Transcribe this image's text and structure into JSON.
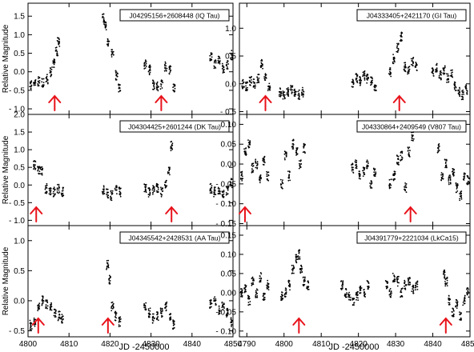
{
  "figure": {
    "left_xlabel": "JD -2450000",
    "right_xlabel": "JD -2450000",
    "ylabel": "Relative Magnitude"
  },
  "colors": {
    "arrow": "#e8131b",
    "points": "#000000",
    "frame": "#000000"
  },
  "chart_data": [
    {
      "type": "scatter",
      "title": "J04295156+2608448 (IQ Tau)",
      "xlabel": "",
      "ylabel": "Relative Magnitude",
      "xlim": [
        4800,
        4850
      ],
      "ylim": [
        1.85,
        -1.15
      ],
      "y_inverted": true,
      "yticks": [
        1.5,
        1.0,
        0.5,
        0.0,
        -0.5,
        -1.0
      ],
      "ytick_labels": [
        "1.5",
        "1.0",
        "0.5",
        "0.0",
        "- 0.5",
        "- 1.0"
      ],
      "xticks": [
        4800,
        4810,
        4820,
        4830,
        4840,
        4850
      ],
      "xtick_labels": [],
      "arrows_x": [
        4806.5,
        4832.5
      ],
      "series": [
        {
          "x": [
            4800.7,
            4801.6,
            4802.6,
            4803.6,
            4804.6,
            4805.6,
            4806.3,
            4807.0,
            4807.4
          ],
          "y": [
            -0.35,
            -0.3,
            -0.25,
            -0.3,
            -0.2,
            0.0,
            0.25,
            0.55,
            0.8
          ]
        },
        {
          "x": [
            4818.4,
            4818.8,
            4819.6,
            4820.6,
            4821.6,
            4822.3
          ],
          "y": [
            1.45,
            1.25,
            0.8,
            0.5,
            -0.1,
            -0.45
          ]
        },
        {
          "x": [
            4828.6,
            4829.6,
            4830.6,
            4831.6,
            4832.6,
            4833.6,
            4834.6,
            4835.6
          ],
          "y": [
            0.2,
            0.05,
            -0.35,
            -0.4,
            -0.35,
            0.15,
            0.05,
            -0.45
          ]
        },
        {
          "x": [
            4844.6,
            4845.6,
            4846.6,
            4847.6,
            4848.6,
            4849.6
          ],
          "y": [
            0.4,
            0.2,
            0.3,
            0.1,
            0.2,
            0.45
          ]
        }
      ]
    },
    {
      "type": "scatter",
      "title": "J04333405+2421170 (GI Tau)",
      "xlabel": "",
      "ylabel": "",
      "xlim": [
        4788,
        4850
      ],
      "ylim": [
        1.45,
        -0.55
      ],
      "y_inverted": true,
      "yticks": [
        1.0,
        0.5,
        0.0,
        -0.5
      ],
      "ytick_labels": [
        "1.0",
        "0.5",
        "0.0",
        "- 0.5"
      ],
      "xticks": [
        4790,
        4800,
        4810,
        4820,
        4830,
        4840,
        4850
      ],
      "xtick_labels": [],
      "arrows_x": [
        4795,
        4831
      ],
      "series": [
        {
          "x": [
            4789,
            4790,
            4791,
            4792,
            4793,
            4794,
            4795,
            4796
          ],
          "y": [
            0.0,
            -0.05,
            0.05,
            0.0,
            0.1,
            0.35,
            0.15,
            -0.05
          ]
        },
        {
          "x": [
            4799,
            4800,
            4801,
            4802,
            4803,
            4804,
            4805
          ],
          "y": [
            -0.15,
            -0.2,
            -0.15,
            -0.1,
            -0.15,
            -0.2,
            -0.15
          ]
        },
        {
          "x": [
            4818.5,
            4819.5,
            4820.5,
            4821.5,
            4822.5,
            4823.5,
            4824.5
          ],
          "y": [
            0.0,
            0.1,
            0.05,
            0.15,
            0.1,
            0.05,
            -0.1
          ]
        },
        {
          "x": [
            4828.5,
            4829.5,
            4830.5,
            4831.5,
            4832.5,
            4833.5,
            4834.5,
            4835.5
          ],
          "y": [
            0.2,
            0.45,
            0.65,
            0.85,
            0.3,
            0.25,
            0.4,
            0.3
          ]
        },
        {
          "x": [
            4840,
            4841,
            4842,
            4843,
            4844,
            4845,
            4846,
            4847,
            4848,
            4849
          ],
          "y": [
            0.2,
            0.3,
            0.15,
            0.25,
            0.1,
            0.2,
            -0.05,
            -0.15,
            -0.2,
            -0.1
          ]
        }
      ]
    },
    {
      "type": "scatter",
      "title": "J04304425+2601244 (DK Tau)",
      "xlabel": "",
      "ylabel": "Relative Magnitude",
      "xlim": [
        4800,
        4850
      ],
      "ylim": [
        2.0,
        -1.15
      ],
      "y_inverted": true,
      "yticks": [
        2.0,
        1.5,
        1.0,
        0.5,
        0.0,
        -0.5,
        -1.0
      ],
      "ytick_labels": [
        "2.0",
        "1.5",
        "1.0",
        "0.5",
        "0.0",
        "- 0.5",
        "- 1.0"
      ],
      "xticks": [
        4800,
        4810,
        4820,
        4830,
        4840,
        4850
      ],
      "xtick_labels": [],
      "arrows_x": [
        4802,
        4835
      ],
      "series": [
        {
          "x": [
            4801.6,
            4802.6,
            4803.3,
            4804.4,
            4805.4,
            4806.4,
            4807.4,
            4808.4
          ],
          "y": [
            0.55,
            0.45,
            0.4,
            -0.1,
            -0.15,
            -0.2,
            -0.1,
            -0.2
          ]
        },
        {
          "x": [
            4818.4,
            4819.4,
            4820.4,
            4821.4,
            4822.4
          ],
          "y": [
            -0.15,
            -0.25,
            -0.3,
            -0.15,
            -0.2
          ]
        },
        {
          "x": [
            4828.6,
            4829.6,
            4830.6,
            4831.6,
            4832.6,
            4833.6,
            4834.3,
            4835.0
          ],
          "y": [
            -0.1,
            -0.2,
            -0.15,
            -0.1,
            -0.2,
            0.0,
            0.4,
            1.1
          ]
        },
        {
          "x": [
            4844.6,
            4845.6,
            4846.6,
            4847.6,
            4848.6,
            4849.6
          ],
          "y": [
            -0.1,
            -0.2,
            -0.15,
            -0.25,
            -0.15,
            0.05
          ]
        }
      ]
    },
    {
      "type": "scatter",
      "title": "J04330864+2409549 (V807 Tau)",
      "xlabel": "",
      "ylabel": "",
      "xlim": [
        4788,
        4850
      ],
      "ylim": [
        0.125,
        -0.155
      ],
      "y_inverted": true,
      "yticks": [
        0.1,
        0.05,
        0.0,
        -0.05,
        -0.1,
        -0.15
      ],
      "ytick_labels": [
        "0.10",
        "0.05",
        "0.00",
        "- 0.05",
        "- 0.10",
        "- 0.15"
      ],
      "xticks": [
        4790,
        4800,
        4810,
        4820,
        4830,
        4840,
        4850
      ],
      "xtick_labels": [],
      "arrows_x": [
        4789.5,
        4834
      ],
      "series": [
        {
          "x": [
            4788.6,
            4789.6,
            4790.6,
            4791.6,
            4792.6,
            4793.6,
            4794.6,
            4795.6
          ],
          "y": [
            -0.03,
            0.03,
            0.05,
            -0.01,
            0.0,
            -0.04,
            0.01,
            -0.03
          ]
        },
        {
          "x": [
            4799.4,
            4800.4,
            4801.4,
            4802.4,
            4803.4,
            4804.4,
            4805.4
          ],
          "y": [
            -0.05,
            0.02,
            -0.03,
            0.05,
            0.03,
            0.0,
            0.04
          ]
        },
        {
          "x": [
            4818.4,
            4819.4,
            4820.4,
            4821.4,
            4822.4,
            4823.4,
            4824.4
          ],
          "y": [
            -0.01,
            0.0,
            -0.03,
            -0.02,
            0.0,
            -0.05,
            -0.02
          ]
        },
        {
          "x": [
            4828.6,
            4829.6,
            4830.6,
            4831.6,
            4832.6,
            4833.6,
            4834.6
          ],
          "y": [
            -0.05,
            -0.03,
            0.01,
            0.02,
            -0.06,
            0.03,
            0.07
          ]
        },
        {
          "x": [
            4841.5,
            4842.5,
            4843.5,
            4844.5,
            4845.5,
            4846.5,
            4847.5,
            4848.5,
            4849.5
          ],
          "y": [
            0.04,
            -0.03,
            0.0,
            -0.04,
            -0.02,
            -0.06,
            -0.08,
            -0.03,
            -0.04
          ]
        }
      ]
    },
    {
      "type": "scatter",
      "title": "J04345542+2428531 (AA Tau)",
      "xlabel": "JD -2450000",
      "ylabel": "Relative Magnitude",
      "xlim": [
        4800,
        4850
      ],
      "ylim": [
        1.25,
        -0.6
      ],
      "y_inverted": true,
      "yticks": [
        1.0,
        0.5,
        0.0,
        -0.5
      ],
      "ytick_labels": [
        "1.0",
        "0.5",
        "0.0",
        "- 0.5"
      ],
      "xticks": [
        4800,
        4810,
        4820,
        4830,
        4840,
        4850
      ],
      "xtick_labels": [
        "4800",
        "4810",
        "4820",
        "4830",
        "4840",
        "4850"
      ],
      "arrows_x": [
        4802.5,
        4819.5
      ],
      "series": [
        {
          "x": [
            4800.7,
            4801.6,
            4802.6,
            4803.6,
            4804.6,
            4805.6,
            4806.6,
            4807.6,
            4808.4
          ],
          "y": [
            -0.4,
            -0.35,
            -0.1,
            0.0,
            -0.05,
            -0.1,
            -0.2,
            -0.25,
            -0.3
          ]
        },
        {
          "x": [
            4819.4,
            4820.0,
            4820.6,
            4821.4,
            4822.4
          ],
          "y": [
            0.6,
            0.35,
            -0.1,
            -0.25,
            -0.35
          ]
        },
        {
          "x": [
            4828.6,
            4829.6,
            4830.6,
            4831.6,
            4832.6,
            4833.6,
            4834.6,
            4835.6
          ],
          "y": [
            -0.1,
            -0.2,
            -0.3,
            -0.25,
            -0.2,
            -0.1,
            -0.25,
            -0.4
          ]
        },
        {
          "x": [
            4844.6,
            4845.6,
            4846.6,
            4847.6,
            4848.6,
            4849.6
          ],
          "y": [
            -0.05,
            0.0,
            -0.15,
            -0.1,
            -0.2,
            -0.35
          ]
        }
      ]
    },
    {
      "type": "scatter",
      "title": "J04391779+2221034 (LkCa15)",
      "xlabel": "JD -2450000",
      "ylabel": "",
      "xlim": [
        4788,
        4850
      ],
      "ylim": [
        0.175,
        -0.115
      ],
      "y_inverted": true,
      "yticks": [
        0.15,
        0.1,
        0.05,
        0.0,
        -0.05,
        -0.1
      ],
      "ytick_labels": [
        "0.15",
        "0.10",
        "0.05",
        "0.00",
        "- 0.05",
        "- 0.10"
      ],
      "xticks": [
        4790,
        4800,
        4810,
        4820,
        4830,
        4840,
        4850
      ],
      "xtick_labels": [
        "4790",
        "4800",
        "4810",
        "4820",
        "4830",
        "4840",
        "4850"
      ],
      "arrows_x": [
        4804,
        4843.5
      ],
      "series": [
        {
          "x": [
            4788.6,
            4789.6,
            4790.6,
            4791.6,
            4792.6,
            4793.6,
            4794.6,
            4795.6
          ],
          "y": [
            0.0,
            0.01,
            -0.02,
            0.03,
            0.0,
            0.04,
            -0.01,
            0.02
          ]
        },
        {
          "x": [
            4799.4,
            4800.4,
            4801.4,
            4802.4,
            4803.4,
            4804.0,
            4804.6,
            4805.4,
            4806.4
          ],
          "y": [
            -0.01,
            0.0,
            0.02,
            0.06,
            0.09,
            0.1,
            0.06,
            0.03,
            0.02
          ]
        },
        {
          "x": [
            4815.6,
            4816.6,
            4817.6,
            4818.6,
            4819.6,
            4820.6,
            4821.6,
            4822.6
          ],
          "y": [
            0.02,
            0.0,
            -0.01,
            -0.02,
            -0.01,
            0.01,
            0.0,
            0.02
          ]
        },
        {
          "x": [
            4827.6,
            4828.6,
            4829.6,
            4830.6,
            4831.6,
            4832.6,
            4833.6,
            4834.6,
            4835.6
          ],
          "y": [
            0.02,
            0.0,
            0.04,
            0.03,
            0.0,
            0.02,
            0.03,
            0.01,
            0.02
          ]
        },
        {
          "x": [
            4843.0,
            4843.6,
            4844.4,
            4845.4,
            4846.4,
            4847.4,
            4848.4,
            4849.4
          ],
          "y": [
            0.05,
            0.03,
            -0.02,
            -0.05,
            -0.03,
            -0.06,
            -0.02,
            0.0
          ]
        }
      ]
    }
  ]
}
